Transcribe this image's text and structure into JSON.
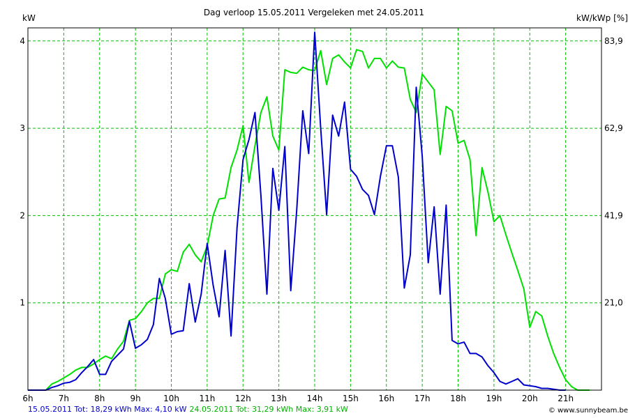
{
  "chart_data": {
    "type": "line",
    "title": "Dag  verloop 15.05.2011   Vergeleken met 24.05.2011",
    "ylabel_left": "kW",
    "ylabel_right": "kW/kWp [%]",
    "ylim": [
      0,
      4.15
    ],
    "yticks_left": [
      {
        "value": 1,
        "label": "1"
      },
      {
        "value": 2,
        "label": "2"
      },
      {
        "value": 3,
        "label": "3"
      },
      {
        "value": 4,
        "label": "4"
      }
    ],
    "yticks_right": [
      {
        "value": 1,
        "label": "21,0"
      },
      {
        "value": 2,
        "label": "41,9"
      },
      {
        "value": 3,
        "label": "62,9"
      },
      {
        "value": 4,
        "label": "83,9"
      }
    ],
    "xlim": [
      6,
      22
    ],
    "xticks": [
      {
        "value": 6,
        "label": "6h"
      },
      {
        "value": 7,
        "label": "7h"
      },
      {
        "value": 8,
        "label": "8h"
      },
      {
        "value": 9,
        "label": "9h"
      },
      {
        "value": 10,
        "label": "10h"
      },
      {
        "value": 11,
        "label": "11h"
      },
      {
        "value": 12,
        "label": "12h"
      },
      {
        "value": 13,
        "label": "13h"
      },
      {
        "value": 14,
        "label": "14h"
      },
      {
        "value": 15,
        "label": "15h"
      },
      {
        "value": 16,
        "label": "16h"
      },
      {
        "value": 17,
        "label": "17h"
      },
      {
        "value": 18,
        "label": "18h"
      },
      {
        "value": 19,
        "label": "19h"
      },
      {
        "value": 20,
        "label": "20h"
      },
      {
        "value": 21,
        "label": "21h"
      }
    ],
    "grid": true,
    "series": [
      {
        "name": "24.05.2011",
        "color": "#00e000",
        "x": [
          6.0,
          6.5,
          6.667,
          6.833,
          7.0,
          7.167,
          7.333,
          7.5,
          7.667,
          7.833,
          8.0,
          8.167,
          8.333,
          8.5,
          8.667,
          8.833,
          9.0,
          9.167,
          9.333,
          9.5,
          9.667,
          9.833,
          10.0,
          10.167,
          10.333,
          10.5,
          10.667,
          10.833,
          11.0,
          11.167,
          11.333,
          11.5,
          11.667,
          11.833,
          12.0,
          12.167,
          12.333,
          12.5,
          12.667,
          12.833,
          13.0,
          13.167,
          13.333,
          13.5,
          13.667,
          13.833,
          14.0,
          14.167,
          14.333,
          14.5,
          14.667,
          14.833,
          15.0,
          15.167,
          15.333,
          15.5,
          15.667,
          15.833,
          16.0,
          16.167,
          16.333,
          16.5,
          16.667,
          16.833,
          17.0,
          17.167,
          17.333,
          17.5,
          17.667,
          17.833,
          18.0,
          18.167,
          18.333,
          18.5,
          18.667,
          18.833,
          19.0,
          19.167,
          19.333,
          19.5,
          19.667,
          19.833,
          20.0,
          20.167,
          20.333,
          20.5,
          20.667,
          20.833,
          21.0,
          21.167,
          21.333,
          21.5,
          21.667
        ],
        "values": [
          0,
          0,
          0.07,
          0.1,
          0.14,
          0.18,
          0.23,
          0.26,
          0.26,
          0.3,
          0.35,
          0.39,
          0.36,
          0.47,
          0.56,
          0.8,
          0.82,
          0.9,
          1.0,
          1.05,
          1.05,
          1.33,
          1.38,
          1.36,
          1.58,
          1.67,
          1.55,
          1.47,
          1.65,
          2.0,
          2.19,
          2.2,
          2.55,
          2.75,
          3.03,
          2.38,
          2.8,
          3.18,
          3.36,
          2.91,
          2.75,
          3.67,
          3.64,
          3.63,
          3.7,
          3.67,
          3.66,
          3.89,
          3.5,
          3.8,
          3.84,
          3.76,
          3.69,
          3.9,
          3.88,
          3.69,
          3.8,
          3.8,
          3.69,
          3.77,
          3.7,
          3.69,
          3.33,
          3.18,
          3.62,
          3.53,
          3.44,
          2.7,
          3.25,
          3.2,
          2.83,
          2.86,
          2.64,
          1.77,
          2.55,
          2.27,
          1.93,
          2.0,
          1.78,
          1.57,
          1.37,
          1.16,
          0.72,
          0.9,
          0.85,
          0.62,
          0.42,
          0.26,
          0.12,
          0.04,
          0,
          0,
          0
        ]
      },
      {
        "name": "15.05.2011",
        "color": "#0000cc",
        "x": [
          6.0,
          6.5,
          6.667,
          6.833,
          7.0,
          7.167,
          7.333,
          7.5,
          7.667,
          7.833,
          8.0,
          8.167,
          8.333,
          8.5,
          8.667,
          8.833,
          9.0,
          9.167,
          9.333,
          9.5,
          9.667,
          9.833,
          10.0,
          10.167,
          10.333,
          10.5,
          10.667,
          10.833,
          11.0,
          11.167,
          11.333,
          11.5,
          11.667,
          11.833,
          12.0,
          12.167,
          12.333,
          12.5,
          12.667,
          12.833,
          13.0,
          13.167,
          13.333,
          13.5,
          13.667,
          13.833,
          14.0,
          14.167,
          14.333,
          14.5,
          14.667,
          14.833,
          15.0,
          15.167,
          15.333,
          15.5,
          15.667,
          15.833,
          16.0,
          16.167,
          16.333,
          16.5,
          16.667,
          16.833,
          17.0,
          17.167,
          17.333,
          17.5,
          17.667,
          17.833,
          18.0,
          18.167,
          18.333,
          18.5,
          18.667,
          18.833,
          19.0,
          19.167,
          19.333,
          19.5,
          19.667,
          19.833,
          20.0,
          20.167,
          20.333,
          20.5,
          20.667,
          20.833,
          21.0
        ],
        "values": [
          0,
          0,
          0.03,
          0.05,
          0.08,
          0.09,
          0.12,
          0.2,
          0.27,
          0.35,
          0.18,
          0.18,
          0.33,
          0.4,
          0.47,
          0.79,
          0.48,
          0.52,
          0.58,
          0.75,
          1.28,
          1.05,
          0.64,
          0.67,
          0.68,
          1.22,
          0.78,
          1.1,
          1.68,
          1.2,
          0.84,
          1.6,
          0.62,
          1.86,
          2.64,
          2.87,
          3.18,
          2.23,
          1.1,
          2.54,
          2.06,
          2.79,
          1.14,
          2.07,
          3.2,
          2.71,
          4.1,
          3.0,
          2.01,
          3.15,
          2.91,
          3.3,
          2.53,
          2.45,
          2.3,
          2.23,
          2.01,
          2.45,
          2.8,
          2.8,
          2.44,
          1.17,
          1.55,
          3.47,
          2.68,
          1.46,
          2.1,
          1.1,
          2.12,
          0.57,
          0.53,
          0.55,
          0.42,
          0.42,
          0.38,
          0.28,
          0.2,
          0.1,
          0.07,
          0.1,
          0.13,
          0.06,
          0.05,
          0.04,
          0.02,
          0.02,
          0.01,
          0,
          0
        ]
      }
    ]
  },
  "footer": {
    "blue_text": "15.05.2011 Tot: 18,29 kWh Max: 4,10 kW",
    "green_text": "24.05.2011 Tot: 31,29 kWh Max: 3,91 kW",
    "blue_color": "#0000cc",
    "green_color": "#00b000",
    "credit": "© www.sunnybeam.be"
  }
}
